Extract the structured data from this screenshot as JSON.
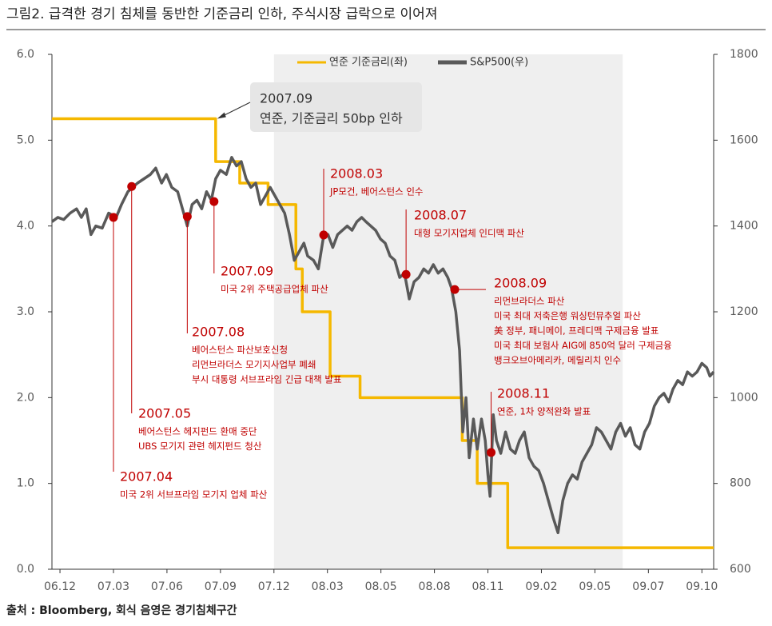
{
  "chart_data": {
    "type": "line",
    "title": "그림2. 급격한 경기 침체를 동반한 기준금리 인하, 주식시장 급락으로 이어져",
    "source": "출처 : Bloomberg, 회식 음영은 경기침체구간",
    "xlim": [
      -0.15,
      12.22
    ],
    "xticks": [
      {
        "value": 0,
        "label": "06.12"
      },
      {
        "value": 1,
        "label": "07.03"
      },
      {
        "value": 2,
        "label": "07.06"
      },
      {
        "value": 3,
        "label": "07.09"
      },
      {
        "value": 4,
        "label": "07.12"
      },
      {
        "value": 5,
        "label": "08.03"
      },
      {
        "value": 6,
        "label": "08.05"
      },
      {
        "value": 7,
        "label": "08.08"
      },
      {
        "value": 8,
        "label": "08.11"
      },
      {
        "value": 9,
        "label": "09.02"
      },
      {
        "value": 10,
        "label": "09.05"
      },
      {
        "value": 11,
        "label": "09.07"
      },
      {
        "value": 12,
        "label": "09.10"
      }
    ],
    "ylim": [
      0,
      6
    ],
    "yticks": [
      {
        "value": 0,
        "label": "0.0"
      },
      {
        "value": 1,
        "label": "1.0"
      },
      {
        "value": 2,
        "label": "2.0"
      },
      {
        "value": 3,
        "label": "3.0"
      },
      {
        "value": 4,
        "label": "4.0"
      },
      {
        "value": 5,
        "label": "5.0"
      },
      {
        "value": 6,
        "label": "6.0"
      }
    ],
    "y2lim": [
      600,
      1800
    ],
    "y2ticks": [
      600,
      800,
      1000,
      1200,
      1400,
      1600,
      1800
    ],
    "shade": [
      4,
      10.52
    ],
    "series": [
      {
        "name": "연준 기준금리(좌)",
        "color": "#f5b800",
        "step": true,
        "x": [
          -0.15,
          2.91,
          3.36,
          3.89,
          4.41,
          4.53,
          5.05,
          5.61,
          7.52,
          7.8,
          8.37
        ],
        "values": [
          5.25,
          4.75,
          4.5,
          4.25,
          3.5,
          3.0,
          2.25,
          2.0,
          1.5,
          1.0,
          0.25
        ]
      },
      {
        "name": "S&P500(우)",
        "color": "#595959",
        "axis": "y2",
        "x": [
          -0.15,
          -0.04,
          0.07,
          0.19,
          0.31,
          0.4,
          0.49,
          0.58,
          0.67,
          0.79,
          0.91,
          1.05,
          1.15,
          1.27,
          1.36,
          1.45,
          1.57,
          1.69,
          1.79,
          1.9,
          1.99,
          2.09,
          2.2,
          2.29,
          2.38,
          2.47,
          2.56,
          2.65,
          2.74,
          2.83,
          2.91,
          3.0,
          3.11,
          3.21,
          3.3,
          3.39,
          3.48,
          3.57,
          3.66,
          3.75,
          3.84,
          3.93,
          4.02,
          4.11,
          4.2,
          4.29,
          4.38,
          4.47,
          4.56,
          4.63,
          4.74,
          4.83,
          4.92,
          5.01,
          5.1,
          5.19,
          5.28,
          5.37,
          5.46,
          5.55,
          5.64,
          5.72,
          5.81,
          5.9,
          5.99,
          6.08,
          6.17,
          6.26,
          6.35,
          6.44,
          6.53,
          6.62,
          6.71,
          6.8,
          6.89,
          6.98,
          7.07,
          7.16,
          7.25,
          7.32,
          7.4,
          7.47,
          7.53,
          7.59,
          7.65,
          7.73,
          7.8,
          7.88,
          7.95,
          8.0,
          8.04,
          8.1,
          8.16,
          8.24,
          8.33,
          8.42,
          8.51,
          8.59,
          8.68,
          8.77,
          8.86,
          8.95,
          9.04,
          9.13,
          9.22,
          9.31,
          9.4,
          9.49,
          9.58,
          9.67,
          9.76,
          9.85,
          9.94,
          10.03,
          10.12,
          10.21,
          10.3,
          10.39,
          10.48,
          10.57,
          10.66,
          10.75,
          10.84,
          10.93,
          11.02,
          11.11,
          11.2,
          11.29,
          11.38,
          11.46,
          11.55,
          11.64,
          11.73,
          11.82,
          11.91,
          12.0,
          12.09,
          12.15,
          12.22
        ],
        "values": [
          1410,
          1420,
          1415,
          1430,
          1440,
          1420,
          1440,
          1380,
          1400,
          1395,
          1430,
          1420,
          1450,
          1480,
          1490,
          1500,
          1510,
          1520,
          1535,
          1500,
          1520,
          1490,
          1480,
          1440,
          1400,
          1450,
          1460,
          1440,
          1480,
          1460,
          1510,
          1530,
          1520,
          1560,
          1540,
          1550,
          1510,
          1490,
          1500,
          1450,
          1470,
          1490,
          1470,
          1450,
          1430,
          1380,
          1320,
          1340,
          1360,
          1330,
          1320,
          1300,
          1370,
          1380,
          1350,
          1380,
          1390,
          1400,
          1390,
          1410,
          1420,
          1410,
          1400,
          1390,
          1370,
          1360,
          1330,
          1320,
          1280,
          1290,
          1230,
          1270,
          1280,
          1300,
          1290,
          1310,
          1290,
          1300,
          1280,
          1255,
          1200,
          1110,
          920,
          1000,
          860,
          950,
          880,
          950,
          900,
          820,
          770,
          960,
          900,
          870,
          920,
          880,
          870,
          900,
          920,
          860,
          840,
          830,
          800,
          760,
          720,
          685,
          760,
          800,
          820,
          810,
          850,
          870,
          890,
          930,
          920,
          900,
          880,
          920,
          940,
          910,
          930,
          890,
          880,
          920,
          940,
          980,
          1000,
          1010,
          990,
          1020,
          1040,
          1030,
          1060,
          1050,
          1060,
          1080,
          1070,
          1050,
          1060
        ]
      }
    ],
    "callout": {
      "x": 2.91,
      "y": 5.25,
      "date": "2007.09",
      "text": "연준, 기준금리 50bp 인하"
    },
    "annotations": [
      {
        "x": 1.0,
        "y": 1420,
        "date": "2007.04",
        "lines": [
          "미국 2위 서브프라임 모기지 업체 파산"
        ]
      },
      {
        "x": 1.34,
        "y": 1492,
        "date": "2007.05",
        "lines": [
          "베어스턴스 헤지펀드 환매 중단",
          "UBS 모기지 관련 헤지펀드 청산"
        ]
      },
      {
        "x": 2.38,
        "y": 1422,
        "date": "2007.08",
        "lines": [
          "베어스턴스 파산보호신청",
          "리먼브라더스 모기지사업부 폐쇄",
          "부시 대통령 서브프라임 긴급 대책 발표"
        ]
      },
      {
        "x": 2.88,
        "y": 1457,
        "date": "2007.09",
        "lines": [
          "미국 2위 주택공급업체 파산"
        ]
      },
      {
        "x": 4.93,
        "y": 1379,
        "date": "2008.03",
        "lines": [
          "JP모건, 베어스턴스 인수"
        ]
      },
      {
        "x": 6.47,
        "y": 1287,
        "date": "2008.07",
        "lines": [
          "대형 모기지업체 인디맥 파산"
        ]
      },
      {
        "x": 7.38,
        "y": 1252,
        "date": "2008.09",
        "lines": [
          "리먼브라더스 파산",
          "미국 최대 저축은행 워싱턴뮤추얼 파산",
          "美 정부, 패니메이, 프레디맥 구제금융 발표",
          "미국 최대 보험사 AIG에 850억 달러 구제금융",
          "뱅크오브아메리카, 메릴리치 인수"
        ]
      },
      {
        "x": 8.06,
        "y": 872,
        "date": "2008.11",
        "lines": [
          "연준, 1차 양적완화 발표"
        ]
      }
    ]
  }
}
